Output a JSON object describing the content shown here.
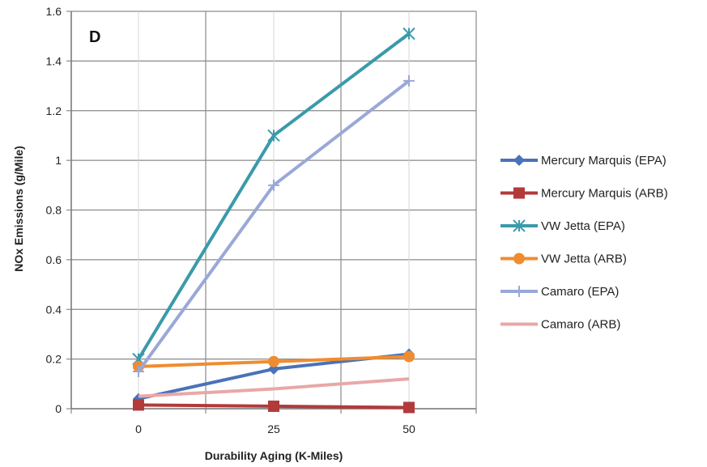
{
  "chart_data": {
    "type": "line",
    "panel_label": "D",
    "xlabel": "Durability Aging (K-Miles)",
    "ylabel": "NOx Emissions (g/Mile)",
    "x": [
      0,
      25,
      50
    ],
    "x_tick_labels": [
      "0",
      "25",
      "50"
    ],
    "y_tick_labels": [
      "0",
      "0.2",
      "0.4",
      "0.6",
      "0.8",
      "1",
      "1.2",
      "1.4",
      "1.6"
    ],
    "ylim": [
      0,
      1.6
    ],
    "grid": true,
    "legend_position": "right",
    "series": [
      {
        "name": "Mercury Marquis (EPA)",
        "values": [
          0.04,
          0.16,
          0.22
        ],
        "color": "#4a72b8",
        "marker": "diamond"
      },
      {
        "name": "Mercury Marquis (ARB)",
        "values": [
          0.015,
          0.01,
          0.005
        ],
        "color": "#b33a3a",
        "marker": "square"
      },
      {
        "name": "VW Jetta  (EPA)",
        "values": [
          0.2,
          1.1,
          1.51
        ],
        "color": "#3a9aaa",
        "marker": "x-star"
      },
      {
        "name": "VW Jetta  (ARB)",
        "values": [
          0.17,
          0.19,
          0.21
        ],
        "color": "#f08c30",
        "marker": "circle"
      },
      {
        "name": "Camaro (EPA)",
        "values": [
          0.15,
          0.9,
          1.32
        ],
        "color": "#9aa8d8",
        "marker": "plus"
      },
      {
        "name": "Camaro (ARB)",
        "values": [
          0.05,
          0.08,
          0.12
        ],
        "color": "#e8a8a8",
        "marker": "none"
      }
    ]
  }
}
